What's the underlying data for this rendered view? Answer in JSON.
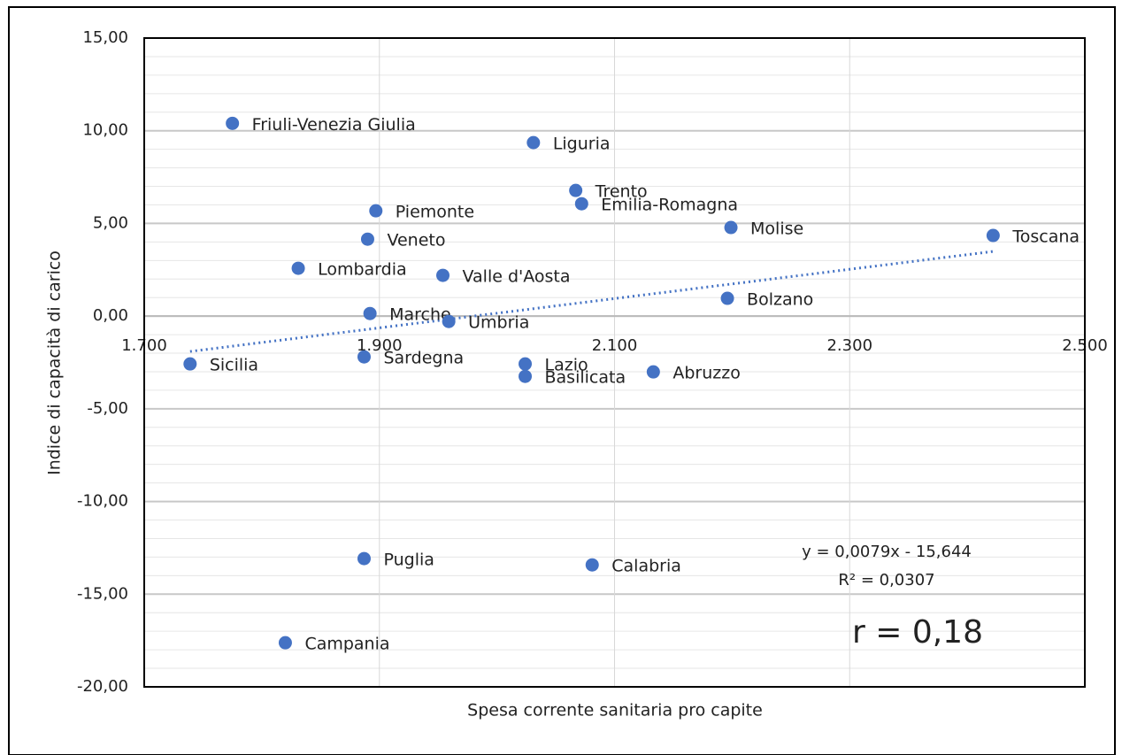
{
  "chart_data": {
    "type": "scatter",
    "xlabel": "Spesa corrente sanitaria pro capite",
    "ylabel": "Indice di capacità di carico",
    "points": [
      {
        "name": "Friuli-Venezia Giulia",
        "x": 1775,
        "y": 10.4
      },
      {
        "name": "Liguria",
        "x": 2031,
        "y": 9.36
      },
      {
        "name": "Trento",
        "x": 2067,
        "y": 6.78
      },
      {
        "name": "Emilia-Romagna",
        "x": 2072,
        "y": 6.06
      },
      {
        "name": "Piemonte",
        "x": 1897,
        "y": 5.68
      },
      {
        "name": "Veneto",
        "x": 1890,
        "y": 4.15
      },
      {
        "name": "Molise",
        "x": 2199,
        "y": 4.78
      },
      {
        "name": "Toscana",
        "x": 2422,
        "y": 4.35
      },
      {
        "name": "Lombardia",
        "x": 1831,
        "y": 2.58
      },
      {
        "name": "Valle d'Aosta",
        "x": 1954,
        "y": 2.2
      },
      {
        "name": "Bolzano",
        "x": 2196,
        "y": 0.96
      },
      {
        "name": "Marche",
        "x": 1892,
        "y": 0.14
      },
      {
        "name": "Umbria",
        "x": 1959,
        "y": -0.29
      },
      {
        "name": "Sicilia",
        "x": 1739,
        "y": -2.58
      },
      {
        "name": "Sardegna",
        "x": 1887,
        "y": -2.2
      },
      {
        "name": "Lazio",
        "x": 2024,
        "y": -2.58
      },
      {
        "name": "Basilicata",
        "x": 2024,
        "y": -3.25
      },
      {
        "name": "Abruzzo",
        "x": 2133,
        "y": -3.01
      },
      {
        "name": "Puglia",
        "x": 1887,
        "y": -13.08
      },
      {
        "name": "Calabria",
        "x": 2081,
        "y": -13.42
      },
      {
        "name": "Campania",
        "x": 1820,
        "y": -17.62
      }
    ],
    "color": "#4472c4",
    "trendline": {
      "slope": 0.0079,
      "intercept": -15.644,
      "label": "y = 0,0079x - 15,644",
      "r2_label": "R² = 0,0307",
      "color": "#4472c4"
    },
    "annotation": "r = 0,18",
    "xlim": [
      1700,
      2500
    ],
    "xticks": [
      {
        "value": 1700,
        "label": "1.700"
      },
      {
        "value": 1900,
        "label": "1.900"
      },
      {
        "value": 2100,
        "label": "2.100"
      },
      {
        "value": 2300,
        "label": "2.300"
      },
      {
        "value": 2500,
        "label": "2.500"
      }
    ],
    "ylim": [
      -20,
      15
    ],
    "yticks": [
      {
        "value": -20,
        "label": "-20,00"
      },
      {
        "value": -15,
        "label": "-15,00"
      },
      {
        "value": -10,
        "label": "-10,00"
      },
      {
        "value": -5,
        "label": "-5,00"
      },
      {
        "value": 0,
        "label": "0,00"
      },
      {
        "value": 5,
        "label": "5,00"
      },
      {
        "value": 10,
        "label": "10,00"
      },
      {
        "value": 15,
        "label": "15,00"
      }
    ],
    "grid": true
  }
}
